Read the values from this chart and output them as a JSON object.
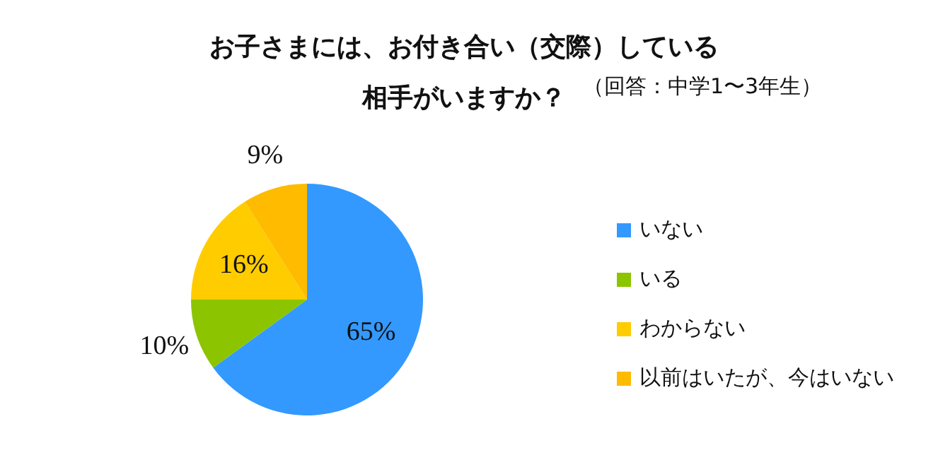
{
  "chart_data": {
    "type": "pie",
    "title": "お子さまには、お付き合い（交際）している相手がいますか？",
    "subtitle": "（回答：中学1〜3年生）",
    "categories": [
      "いない",
      "いる",
      "わからない",
      "以前はいたが、今はいない"
    ],
    "values": [
      65,
      10,
      16,
      9
    ],
    "colors": [
      "#3399ff",
      "#8cc400",
      "#ffcc00",
      "#ffbb00"
    ],
    "value_labels": [
      "65%",
      "10%",
      "16%",
      "9%"
    ],
    "legend": "right"
  }
}
